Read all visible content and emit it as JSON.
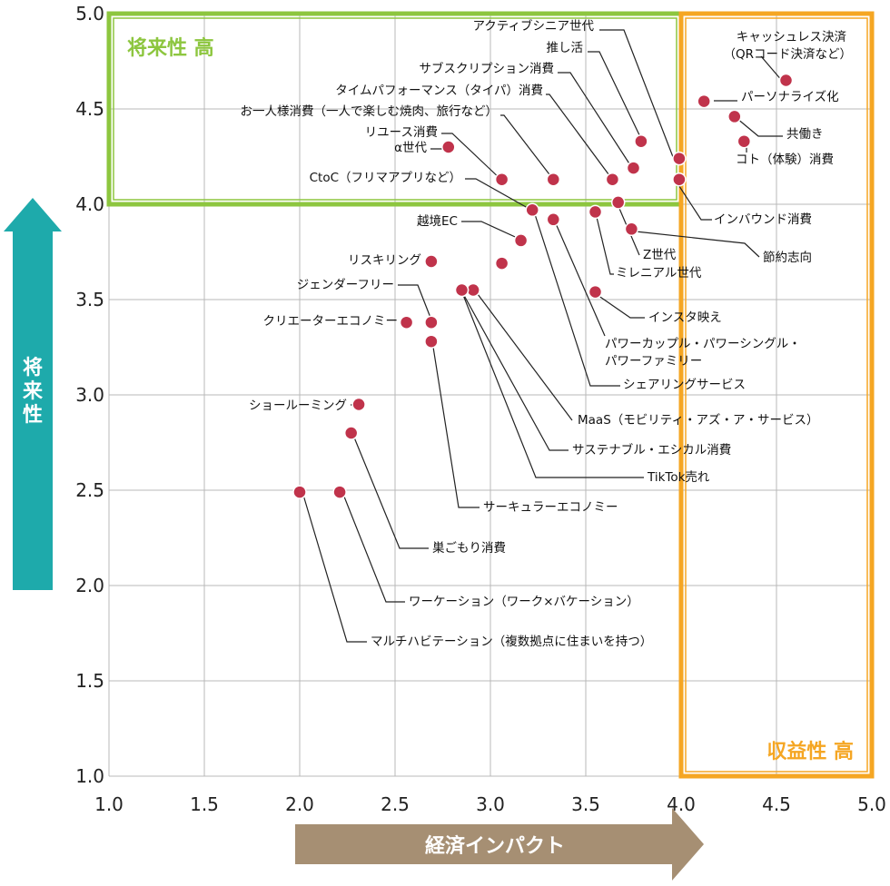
{
  "chart_data": {
    "type": "scatter",
    "xlabel": "経済インパクト",
    "ylabel": "将来性",
    "xlim": [
      1.0,
      5.0
    ],
    "ylim": [
      1.0,
      5.0
    ],
    "x_ticks": [
      "1.0",
      "1.5",
      "2.0",
      "2.5",
      "3.0",
      "3.5",
      "4.0",
      "4.5",
      "5.0"
    ],
    "y_ticks": [
      "1.0",
      "1.5",
      "2.0",
      "2.5",
      "3.0",
      "3.5",
      "4.0",
      "4.5",
      "5.0"
    ],
    "grid": true,
    "zones": [
      {
        "label": "将来性 高",
        "x_range": [
          1.0,
          4.0
        ],
        "y_range": [
          4.0,
          5.0
        ],
        "color": "#8dc63f"
      },
      {
        "label": "収益性 高",
        "x_range": [
          4.0,
          5.0
        ],
        "y_range": [
          1.0,
          5.0
        ],
        "color": "#f5a623"
      }
    ],
    "point_color": "#c0334b",
    "points": [
      {
        "label": "キャッシュレス決済",
        "label2": "（QRコード決済など）",
        "x": 4.55,
        "y": 4.65
      },
      {
        "label": "パーソナライズ化",
        "x": 4.12,
        "y": 4.54
      },
      {
        "label": "共働き",
        "x": 4.28,
        "y": 4.46
      },
      {
        "label": "コト（体験）消費",
        "x": 4.33,
        "y": 4.33
      },
      {
        "label": "インバウンド消費",
        "x": 3.99,
        "y": 4.13
      },
      {
        "label": "アクティブシニア世代",
        "x": 3.99,
        "y": 4.24
      },
      {
        "label": "推し活",
        "x": 3.79,
        "y": 4.33
      },
      {
        "label": "サブスクリプション消費",
        "x": 3.75,
        "y": 4.19
      },
      {
        "label": "タイムパフォーマンス（タイパ）消費",
        "x": 3.64,
        "y": 4.13
      },
      {
        "label": "お一人様消費（一人で楽しむ焼肉、旅行など）",
        "x": 3.33,
        "y": 4.13
      },
      {
        "label": "リユース消費",
        "x": 3.06,
        "y": 4.13
      },
      {
        "label": "α世代",
        "x": 2.78,
        "y": 4.3
      },
      {
        "label": "CtoC（フリマアプリなど）",
        "x": 3.22,
        "y": 3.97
      },
      {
        "label": "越境EC",
        "x": 3.16,
        "y": 3.81
      },
      {
        "label": "Z世代",
        "x": 3.67,
        "y": 4.01
      },
      {
        "label": "節約志向",
        "x": 3.74,
        "y": 3.87
      },
      {
        "label": "ミレニアル世代",
        "x": 3.55,
        "y": 3.96
      },
      {
        "label": "インスタ映え",
        "x": 3.55,
        "y": 3.54
      },
      {
        "label": "パワーカップル・パワーシングル・",
        "label2": "パワーファミリー",
        "x": 3.33,
        "y": 3.92
      },
      {
        "label": "シェアリングサービス",
        "x": 3.06,
        "y": 3.69
      },
      {
        "label": "リスキリング",
        "x": 2.69,
        "y": 3.7
      },
      {
        "label": "MaaS（モビリティ・アズ・ア・サービス）",
        "x": 2.91,
        "y": 3.55
      },
      {
        "label": "サステナブル・エシカル消費",
        "x": 2.85,
        "y": 3.55
      },
      {
        "label": "TikTok売れ",
        "x": 2.85,
        "y": 3.55
      },
      {
        "label": "ジェンダーフリー",
        "x": 2.69,
        "y": 3.38
      },
      {
        "label": "クリエーターエコノミー",
        "x": 2.56,
        "y": 3.38
      },
      {
        "label": "サーキュラーエコノミー",
        "x": 2.69,
        "y": 3.28
      },
      {
        "label": "ショールーミング",
        "x": 2.31,
        "y": 2.95
      },
      {
        "label": "巣ごもり消費",
        "x": 2.27,
        "y": 2.8
      },
      {
        "label": "ワーケーション（ワーク×バケーション）",
        "x": 2.21,
        "y": 2.49
      },
      {
        "label": "マルチハビテーション（複数拠点に住まいを持つ）",
        "x": 2.0,
        "y": 2.49
      }
    ]
  }
}
